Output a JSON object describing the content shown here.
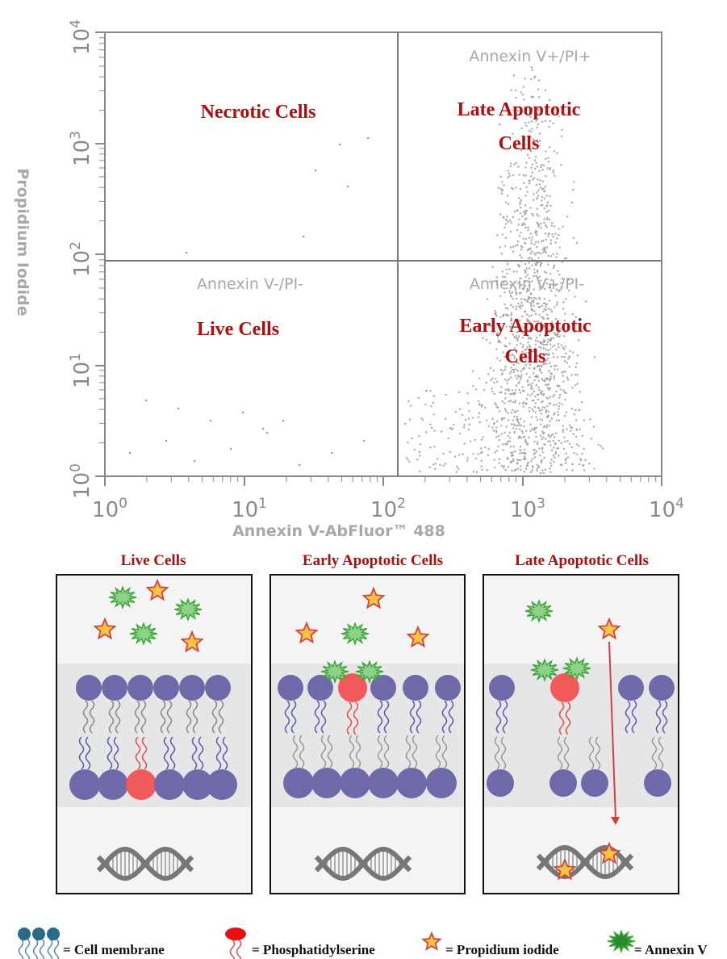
{
  "plot": {
    "y_axis_label": "Propidium Iodide",
    "x_axis_label": "Annexin V-AbFluor™ 488",
    "x_tick_labels": [
      {
        "base": "10",
        "exp": "0"
      },
      {
        "base": "10",
        "exp": "1"
      },
      {
        "base": "10",
        "exp": "2"
      },
      {
        "base": "10",
        "exp": "3"
      },
      {
        "base": "10",
        "exp": "4"
      }
    ],
    "y_tick_labels": [
      {
        "base": "10",
        "exp": "4"
      },
      {
        "base": "10",
        "exp": "3"
      },
      {
        "base": "10",
        "exp": "2"
      },
      {
        "base": "10",
        "exp": "1"
      },
      {
        "base": "10",
        "exp": "0"
      }
    ],
    "quadrants": {
      "upper_left": {
        "title": "Necrotic Cells"
      },
      "upper_right": {
        "marker": "Annexin V+/PI+",
        "title": [
          "Late Apoptotic",
          "Cells"
        ]
      },
      "lower_left": {
        "marker": "Annexin V-/PI-",
        "title": "Live Cells"
      },
      "lower_right": {
        "marker": "Annexin V+/PI-",
        "title": [
          "Early Apoptotic",
          "Cells"
        ]
      }
    }
  },
  "panels": [
    {
      "title": "Live Cells"
    },
    {
      "title": "Early Apoptotic Cells"
    },
    {
      "title": "Late Apoptotic Cells"
    }
  ],
  "legend": [
    "= Cell membrane",
    "= Phosphatidylserine",
    "= Propidium iodide",
    "= Annexin V"
  ]
}
